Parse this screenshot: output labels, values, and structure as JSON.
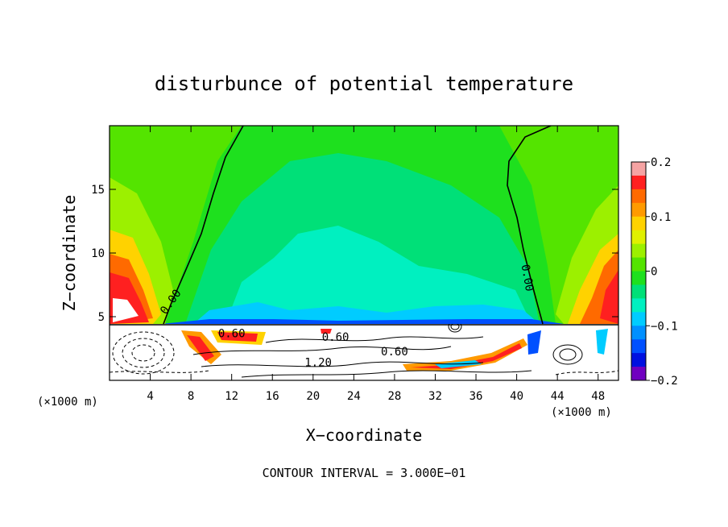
{
  "chart_data": {
    "type": "heatmap",
    "title": "disturbunce of potential temperature",
    "xlabel": "X−coordinate",
    "ylabel": "Z−coordinate",
    "x_unit": "(×1000 m)",
    "z_unit": "(×1000 m)",
    "xlim": [
      0,
      50
    ],
    "ylim": [
      0,
      20
    ],
    "xticks": [
      4,
      8,
      12,
      16,
      20,
      24,
      28,
      32,
      36,
      40,
      44,
      48
    ],
    "yticks": [
      5,
      10,
      15
    ],
    "colorbar": {
      "min": -0.2,
      "max": 0.2,
      "tick_labels": [
        "0.2",
        "0.1",
        "0",
        "−0.1",
        "−0.2"
      ],
      "tick_values": [
        0.2,
        0.1,
        0,
        -0.1,
        -0.2
      ],
      "colors": [
        "#f5a3a3",
        "#ff2020",
        "#ff6a00",
        "#ff9a00",
        "#ffd200",
        "#e0f000",
        "#9cf000",
        "#54e400",
        "#1ee01e",
        "#00e078",
        "#00f0c0",
        "#00ccff",
        "#0090ff",
        "#0050ff",
        "#0010e0",
        "#7000c0"
      ]
    },
    "contour_labels": [
      {
        "text": "0.00",
        "x": 6.3,
        "z": 6.0,
        "angle": -55
      },
      {
        "text": "0.00",
        "x": 40.7,
        "z": 8.0,
        "angle": 80
      },
      {
        "text": "0.60",
        "x": 12.0,
        "z": 3.4,
        "angle": 0
      },
      {
        "text": "0.60",
        "x": 22.2,
        "z": 3.1,
        "angle": 0
      },
      {
        "text": "0.60",
        "x": 28.0,
        "z": 1.95,
        "angle": 0
      },
      {
        "text": "1.20",
        "x": 20.5,
        "z": 1.1,
        "angle": 0
      }
    ],
    "footer": "CONTOUR INTERVAL = 3.000E−01",
    "grid": false
  }
}
